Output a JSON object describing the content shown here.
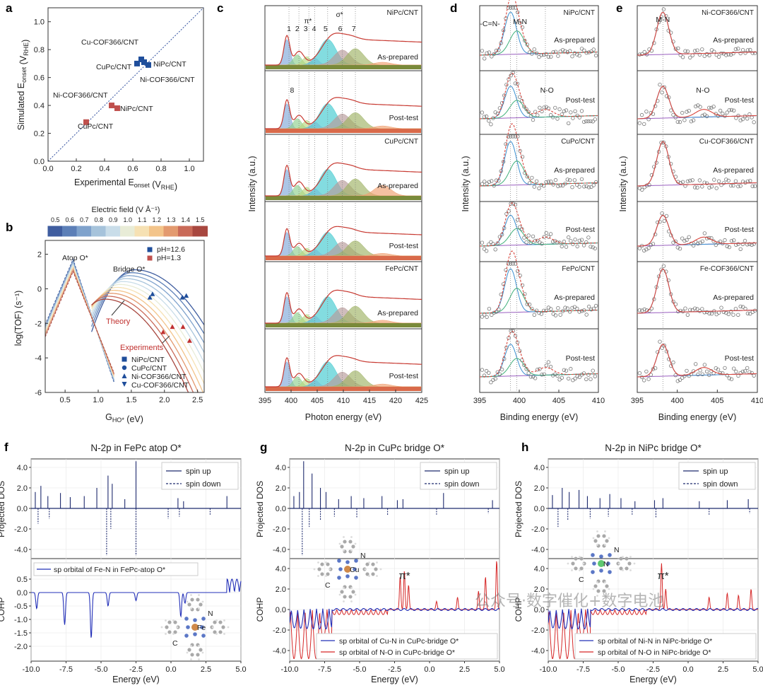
{
  "panels": {
    "a": {
      "label": "a",
      "xlabel": "Experimental E",
      "xlabel_sub": "onset",
      "xlabel_unit": "(V",
      "xlabel_unit_sub": "RHE",
      "ylabel": "Simulated E",
      "ylabel_sub": "onset",
      "ylabel_unit": "(V",
      "ylabel_unit_sub": "RHE",
      "ticks": [
        "0.0",
        "0.2",
        "0.4",
        "0.6",
        "0.8",
        "1.0"
      ]
    },
    "b": {
      "label": "b",
      "colorbar_title": "Electric field (V Å⁻¹)",
      "colorbar_ticks": [
        "0.5",
        "0.6",
        "0.7",
        "0.8",
        "0.9",
        "1.0",
        "1.1",
        "1.2",
        "1.3",
        "1.4",
        "1.5"
      ],
      "ylabel": "log(TOF) (s⁻¹)",
      "xlabel": "G",
      "xlabel_sub": "HO*",
      "xlabel_unit": "(eV)",
      "yticks": [
        "2",
        "0",
        "-2",
        "-4",
        "-6"
      ],
      "xticks": [
        "0.5",
        "1.0",
        "1.5",
        "2.0",
        "2.5"
      ],
      "atop": "Atop O*",
      "bridge": "Bridge O*",
      "theory": "Theory",
      "experiments": "Experiments",
      "ph_high": "pH=12.6",
      "ph_low": "pH=1.3",
      "legend": [
        "NiPc/CNT",
        "CuPc/CNT",
        "Ni-COF366/CNT",
        "Cu-COF366/CNT"
      ]
    },
    "c": {
      "label": "c",
      "ylabel": "Intensity (a.u.)",
      "xlabel": "Photon energy (eV)",
      "xticks": [
        "395",
        "400",
        "405",
        "410",
        "415",
        "420",
        "425"
      ],
      "peak_labels": [
        "1",
        "2",
        "3",
        "4",
        "5",
        "6",
        "7"
      ],
      "pi": "π*",
      "sigma": "σ*",
      "eight": "8",
      "samples": [
        "NiPc/CNT",
        "CuPc/CNT",
        "FePc/CNT"
      ],
      "states": [
        "As-prepared",
        "Post-test"
      ]
    },
    "d": {
      "label": "d",
      "ylabel": "Intensity (a.u.)",
      "xlabel": "Binding energy (eV)",
      "xticks": [
        "395",
        "400",
        "405",
        "410"
      ],
      "cn": "-C=N-",
      "mn": "M-N",
      "no": "N-O",
      "samples": [
        "NiPc/CNT",
        "CuPc/CNT",
        "FePc/CNT"
      ],
      "states": [
        "As-prepared",
        "Post-test"
      ]
    },
    "e": {
      "label": "e",
      "ylabel": "Intensity (a.u.)",
      "xlabel": "Binding energy (eV)",
      "xticks": [
        "395",
        "400",
        "405",
        "410"
      ],
      "mn": "M-N",
      "no": "N-O",
      "samples": [
        "Ni-COF366/CNT",
        "Cu-COF366/CNT",
        "Fe-COF366/CNT"
      ],
      "states": [
        "As-prepared",
        "Post-test"
      ]
    },
    "f": {
      "label": "f",
      "title": "N-2p in FePc atop O*",
      "legend_top": [
        "spin up",
        "spin down"
      ],
      "legend_bottom": [
        "sp orbital of Fe-N in FePc-atop O*"
      ],
      "metal": "Fe",
      "xticks": [
        "-10.0",
        "-7.5",
        "-5.0",
        "-2.5",
        "0.0",
        "2.5",
        "5.0"
      ],
      "dos_ticks": [
        "4.0",
        "2.0",
        "0.0",
        "-2.0",
        "-4.0"
      ],
      "cohp_ticks": [
        "0.5",
        "0.0",
        "-0.5",
        "-1.0",
        "-1.5",
        "-2.0"
      ]
    },
    "g": {
      "label": "g",
      "title": "N-2p in CuPc bridge O*",
      "legend_top": [
        "spin up",
        "spin down"
      ],
      "legend_bottom": [
        "sp orbital of Cu-N in CuPc-bridge O*",
        "sp orbital of N-O in CuPc-bridge O*"
      ],
      "metal": "Cu",
      "pi": "π*",
      "xticks": [
        "-10.0",
        "-7.5",
        "-5.0",
        "-2.5",
        "0.0",
        "2.5",
        "5.0"
      ],
      "dos_ticks": [
        "4.0",
        "2.0",
        "0.0",
        "-2.0",
        "-4.0"
      ],
      "cohp_ticks": [
        "4.0",
        "2.0",
        "0.0",
        "-2.0",
        "-4.0"
      ]
    },
    "h": {
      "label": "h",
      "title": "N-2p in NiPc bridge O*",
      "legend_top": [
        "spin up",
        "spin down"
      ],
      "legend_bottom": [
        "sp orbital of Ni-N in NiPc-bridge O*",
        "sp orbital of N-O in NiPc-bridge O*"
      ],
      "metal": "N",
      "pi": "π*",
      "xticks": [
        "-10.0",
        "-7.5",
        "-5.0",
        "-2.5",
        "0.0",
        "2.5",
        "5.0"
      ],
      "dos_ticks": [
        "4.0",
        "2.0",
        "0.0",
        "-2.0",
        "-4.0"
      ],
      "cohp_ticks": [
        "4.0",
        "2.0",
        "0.0",
        "-2.0",
        "-4.0"
      ]
    }
  },
  "shared": {
    "energy_label": "Energy (eV)",
    "pdos_label": "Projected DOS",
    "cohp_label": "COHP",
    "atom_n": "N",
    "atom_c": "C"
  },
  "watermark": "公众号·数字催化+数字电池",
  "chart_data": [
    {
      "type": "scatter",
      "panel": "a",
      "xlim": [
        0,
        1.1
      ],
      "ylim": [
        0,
        1.1
      ],
      "diagonal": true,
      "series": [
        {
          "name": "pH=12.6",
          "color": "#1f4e9b",
          "points": [
            {
              "label": "Cu-COF366/CNT",
              "x": 0.66,
              "y": 0.73
            },
            {
              "label": "CuPc/CNT",
              "x": 0.63,
              "y": 0.7
            },
            {
              "label": "NiPc/CNT",
              "x": 0.71,
              "y": 0.69
            },
            {
              "label": "Ni-COF366/CNT",
              "x": 0.68,
              "y": 0.71
            }
          ]
        },
        {
          "name": "pH=1.3",
          "color": "#c0504d",
          "points": [
            {
              "label": "Ni-COF366/CNT",
              "x": 0.45,
              "y": 0.4
            },
            {
              "label": "NiPc/CNT",
              "x": 0.49,
              "y": 0.38
            },
            {
              "label": "CuPc/CNT",
              "x": 0.27,
              "y": 0.28
            }
          ]
        }
      ]
    },
    {
      "type": "line",
      "panel": "b",
      "xlim": [
        0.2,
        2.6
      ],
      "ylim": [
        -6,
        2.8
      ],
      "fields": [
        0.5,
        0.6,
        0.7,
        0.8,
        0.9,
        1.0,
        1.1,
        1.2,
        1.3,
        1.4,
        1.5
      ],
      "experiments_pH12": [
        {
          "x": 1.78,
          "y": -0.5
        },
        {
          "x": 1.82,
          "y": -0.3
        },
        {
          "x": 2.27,
          "y": -0.5
        },
        {
          "x": 2.33,
          "y": -0.4
        }
      ],
      "experiments_pH1": [
        {
          "x": 1.98,
          "y": -2.5
        },
        {
          "x": 2.12,
          "y": -2.2
        },
        {
          "x": 2.28,
          "y": -2.2
        },
        {
          "x": 2.38,
          "y": -3.0
        }
      ]
    }
  ]
}
